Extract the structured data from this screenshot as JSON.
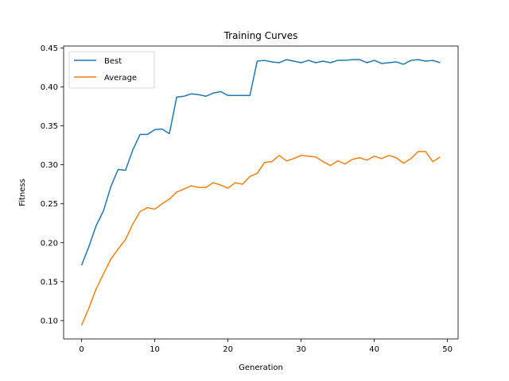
{
  "chart_data": {
    "type": "line",
    "title": "Training Curves",
    "xlabel": "Generation",
    "ylabel": "Fitness",
    "xlim": [
      -2.45,
      51.45
    ],
    "ylim": [
      0.0765,
      0.4524
    ],
    "xticks": [
      0,
      10,
      20,
      30,
      40,
      50
    ],
    "yticks": [
      0.1,
      0.15,
      0.2,
      0.25,
      0.3,
      0.35,
      0.4,
      0.45
    ],
    "ytick_labels": [
      "0.10",
      "0.15",
      "0.20",
      "0.25",
      "0.30",
      "0.35",
      "0.40",
      "0.45"
    ],
    "grid": false,
    "legend_position": "top-left",
    "x": [
      0,
      1,
      2,
      3,
      4,
      5,
      6,
      7,
      8,
      9,
      10,
      11,
      12,
      13,
      14,
      15,
      16,
      17,
      18,
      19,
      20,
      21,
      22,
      23,
      24,
      25,
      26,
      27,
      28,
      29,
      30,
      31,
      32,
      33,
      34,
      35,
      36,
      37,
      38,
      39,
      40,
      41,
      42,
      43,
      44,
      45,
      46,
      47,
      48,
      49
    ],
    "series": [
      {
        "name": "Best",
        "color": "#1f77b4",
        "values": [
          0.171,
          0.195,
          0.222,
          0.241,
          0.272,
          0.294,
          0.293,
          0.319,
          0.339,
          0.339,
          0.345,
          0.346,
          0.34,
          0.387,
          0.388,
          0.391,
          0.39,
          0.388,
          0.392,
          0.394,
          0.389,
          0.389,
          0.389,
          0.389,
          0.433,
          0.434,
          0.432,
          0.431,
          0.435,
          0.433,
          0.431,
          0.434,
          0.431,
          0.433,
          0.431,
          0.434,
          0.434,
          0.435,
          0.435,
          0.431,
          0.434,
          0.43,
          0.431,
          0.432,
          0.429,
          0.434,
          0.435,
          0.433,
          0.434,
          0.431
        ]
      },
      {
        "name": "Average",
        "color": "#ff7f0e",
        "values": [
          0.094,
          0.116,
          0.141,
          0.16,
          0.179,
          0.192,
          0.204,
          0.224,
          0.24,
          0.245,
          0.243,
          0.25,
          0.256,
          0.265,
          0.269,
          0.273,
          0.271,
          0.271,
          0.277,
          0.274,
          0.27,
          0.277,
          0.275,
          0.285,
          0.289,
          0.303,
          0.304,
          0.312,
          0.305,
          0.308,
          0.312,
          0.311,
          0.31,
          0.304,
          0.299,
          0.305,
          0.301,
          0.307,
          0.309,
          0.306,
          0.311,
          0.308,
          0.312,
          0.309,
          0.302,
          0.308,
          0.317,
          0.317,
          0.304,
          0.31
        ]
      }
    ]
  }
}
